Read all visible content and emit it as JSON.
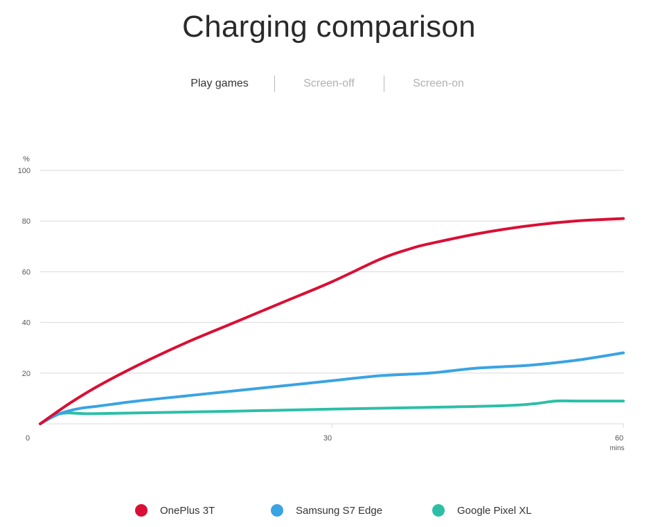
{
  "header": {
    "title": "Charging comparison"
  },
  "tabs": [
    {
      "label": "Play games",
      "active": true
    },
    {
      "label": "Screen-off",
      "active": false
    },
    {
      "label": "Screen-on",
      "active": false
    }
  ],
  "colors": {
    "oneplus": "#d90f35",
    "samsung": "#3aa3e3",
    "pixel": "#2cbfa6",
    "grid": "#d9d9d9",
    "axis_text": "#555555"
  },
  "chart_data": {
    "type": "line",
    "xlabel": "mins",
    "ylabel": "%",
    "xlim": [
      0,
      60
    ],
    "ylim": [
      0,
      100
    ],
    "x_ticks": [
      "0",
      "30",
      "60"
    ],
    "y_ticks": [
      "20",
      "40",
      "60",
      "80",
      "100"
    ],
    "x_tick_values": [
      0,
      30,
      60
    ],
    "y_tick_values": [
      20,
      40,
      60,
      80,
      100
    ],
    "grid": true,
    "legend_position": "bottom",
    "series": [
      {
        "name": "OnePlus 3T",
        "color": "#d90f35",
        "x": [
          0,
          3,
          6,
          10,
          15,
          20,
          25,
          30,
          35,
          38,
          40,
          45,
          50,
          55,
          60
        ],
        "y": [
          0,
          8,
          15,
          23,
          32,
          40,
          48,
          56,
          65,
          69,
          71,
          75,
          78,
          80,
          81
        ]
      },
      {
        "name": "Samsung S7 Edge",
        "color": "#3aa3e3",
        "x": [
          0,
          2,
          4,
          6,
          10,
          15,
          20,
          25,
          30,
          35,
          40,
          45,
          50,
          55,
          60
        ],
        "y": [
          0,
          4,
          6,
          7,
          9,
          11,
          13,
          15,
          17,
          19,
          20,
          22,
          23,
          25,
          28
        ]
      },
      {
        "name": "Google Pixel XL",
        "color": "#2cbfa6",
        "x": [
          0,
          2,
          5,
          10,
          20,
          30,
          40,
          48,
          51,
          53,
          55,
          60
        ],
        "y": [
          0,
          4,
          4,
          4.3,
          5,
          5.8,
          6.5,
          7.2,
          8,
          9,
          9,
          9
        ]
      }
    ]
  }
}
